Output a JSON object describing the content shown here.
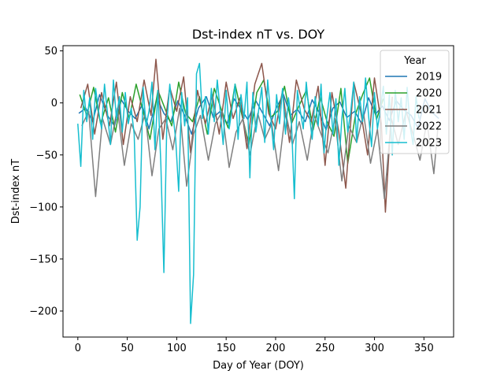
{
  "chart_data": {
    "type": "line",
    "title": "Dst-index nT vs. DOY",
    "xlabel": "Day of Year (DOY)",
    "ylabel": "Dst-index nT",
    "xlim": [
      -15,
      380
    ],
    "ylim": [
      -225,
      55
    ],
    "x_ticks": [
      0,
      50,
      100,
      150,
      200,
      250,
      300,
      350
    ],
    "y_ticks": [
      50,
      0,
      -50,
      -100,
      -150,
      -200
    ],
    "y_tick_labels": [
      "50",
      "0",
      "−50",
      "−100",
      "−150",
      "−200"
    ],
    "grid": false,
    "legend": {
      "title": "Year",
      "placement": "upper-right"
    },
    "series": [
      {
        "name": "2019",
        "color": "#1f77b4",
        "x": [
          1,
          8,
          15,
          22,
          30,
          37,
          44,
          51,
          58,
          65,
          72,
          80,
          87,
          94,
          101,
          108,
          115,
          122,
          130,
          137,
          144,
          151,
          158,
          165,
          172,
          180,
          187,
          194,
          201,
          208,
          215,
          222,
          230,
          237,
          244,
          251,
          258,
          265,
          272,
          280,
          287,
          294,
          301,
          308,
          315,
          322,
          330,
          337,
          344,
          351,
          358,
          365
        ],
        "y": [
          -10,
          -5,
          -18,
          8,
          -12,
          -22,
          3,
          -8,
          -15,
          -2,
          -25,
          5,
          -10,
          -18,
          2,
          -12,
          -30,
          -5,
          6,
          -14,
          -8,
          -20,
          4,
          -6,
          -16,
          2,
          -10,
          -22,
          -4,
          8,
          -12,
          -6,
          -18,
          3,
          -9,
          -26,
          -5,
          1,
          -14,
          -8,
          -20,
          5,
          -11,
          -3,
          -17,
          2,
          -7,
          -12,
          -24,
          4,
          -9,
          -15
        ]
      },
      {
        "name": "2020",
        "color": "#2ca02c",
        "x": [
          2,
          9,
          16,
          23,
          31,
          38,
          45,
          52,
          59,
          66,
          73,
          81,
          88,
          95,
          102,
          109,
          116,
          123,
          131,
          138,
          145,
          152,
          159,
          166,
          173,
          181,
          188,
          195,
          202,
          209,
          216,
          223,
          231,
          238,
          245,
          252,
          259,
          266,
          273,
          281,
          288,
          295,
          302,
          309
        ],
        "y": [
          8,
          -12,
          15,
          -20,
          5,
          -28,
          10,
          -15,
          18,
          -8,
          -35,
          12,
          -5,
          -22,
          20,
          -10,
          -18,
          6,
          -30,
          14,
          -6,
          -24,
          18,
          -12,
          -40,
          10,
          22,
          -14,
          -8,
          16,
          -20,
          -4,
          12,
          -26,
          6,
          -18,
          -32,
          14,
          -58,
          -10,
          8,
          24,
          -16,
          4
        ]
      },
      {
        "name": "2021",
        "color": "#8c564b",
        "x": [
          3,
          10,
          17,
          24,
          32,
          39,
          46,
          53,
          60,
          67,
          74,
          79,
          86,
          93,
          100,
          107,
          114,
          121,
          129,
          136,
          143,
          150,
          157,
          164,
          171,
          179,
          186,
          193,
          200,
          207,
          214,
          221,
          229,
          236,
          243,
          250,
          257,
          264,
          271,
          279,
          286,
          293,
          300,
          307,
          311,
          318
        ],
        "y": [
          -5,
          18,
          -30,
          10,
          -22,
          20,
          -40,
          6,
          -18,
          22,
          -12,
          42,
          -35,
          15,
          -8,
          25,
          -48,
          12,
          -20,
          8,
          -30,
          20,
          -15,
          5,
          -44,
          18,
          38,
          -10,
          -25,
          12,
          -38,
          22,
          -6,
          -18,
          16,
          -60,
          10,
          -28,
          -82,
          20,
          -8,
          -50,
          24,
          -20,
          -105,
          6
        ]
      },
      {
        "name": "2022",
        "color": "#7f7f7f",
        "x": [
          4,
          11,
          18,
          25,
          33,
          40,
          47,
          54,
          61,
          68,
          75,
          82,
          89,
          96,
          103,
          110,
          117,
          124,
          132,
          139,
          146,
          153,
          160,
          167,
          174,
          182,
          189,
          196,
          203,
          210,
          217,
          224,
          232,
          239,
          246,
          253,
          260,
          267,
          274,
          282,
          289,
          296,
          303,
          310,
          317,
          324,
          332,
          339,
          346,
          353,
          360,
          364
        ],
        "y": [
          -22,
          -8,
          -90,
          -15,
          -40,
          -5,
          -60,
          -20,
          -35,
          -10,
          -70,
          -25,
          -15,
          -45,
          -5,
          -80,
          -30,
          -12,
          -55,
          -20,
          -8,
          -62,
          -28,
          -15,
          -50,
          -10,
          -35,
          -20,
          -65,
          -8,
          -40,
          -18,
          -55,
          -12,
          -30,
          -48,
          -15,
          -75,
          -22,
          -38,
          -10,
          -58,
          -25,
          -92,
          -15,
          -40,
          -8,
          -30,
          -55,
          -18,
          -68,
          -25
        ]
      },
      {
        "name": "2023",
        "color": "#17becf",
        "x": [
          0,
          3,
          6,
          9,
          12,
          15,
          18,
          21,
          24,
          27,
          30,
          33,
          36,
          39,
          42,
          45,
          48,
          51,
          54,
          57,
          60,
          63,
          66,
          69,
          72,
          75,
          78,
          81,
          84,
          87,
          90,
          93,
          96,
          99,
          102,
          105,
          108,
          111,
          114,
          117,
          120,
          123,
          126,
          129,
          132,
          135,
          138,
          141,
          144,
          147,
          150,
          153,
          156,
          159,
          162,
          165,
          168,
          171,
          174,
          177,
          180,
          183,
          186,
          189,
          192,
          195,
          198,
          201,
          204,
          207,
          210,
          213,
          216,
          219,
          222,
          225,
          228,
          231,
          234,
          237,
          240,
          243,
          246,
          249,
          252,
          255,
          258,
          261,
          264,
          267,
          270,
          273,
          276,
          279,
          282,
          285,
          288,
          291,
          294,
          297,
          300,
          303,
          306,
          309,
          312,
          315,
          318,
          321,
          324,
          327,
          330,
          333,
          336,
          339,
          342,
          345
        ],
        "y": [
          -20,
          -61,
          12,
          -18,
          5,
          -35,
          14,
          -8,
          -25,
          18,
          -10,
          -40,
          22,
          -15,
          6,
          -28,
          10,
          -20,
          -5,
          -30,
          -132,
          -100,
          15,
          -22,
          -8,
          20,
          -45,
          12,
          -60,
          -163,
          -20,
          18,
          -10,
          -35,
          -85,
          10,
          -22,
          5,
          -212,
          -165,
          28,
          38,
          -15,
          6,
          -30,
          14,
          -18,
          22,
          -8,
          -40,
          12,
          -25,
          -5,
          18,
          -35,
          8,
          -15,
          20,
          -72,
          10,
          -28,
          -6,
          15,
          -38,
          22,
          -12,
          -45,
          8,
          -20,
          14,
          -30,
          5,
          -18,
          -92,
          12,
          -8,
          -25,
          20,
          -10,
          -35,
          6,
          -22,
          18,
          -48,
          -12,
          10,
          -30,
          4,
          -60,
          -15,
          14,
          -28,
          -8,
          20,
          -38,
          6,
          -18,
          24,
          -12,
          -42,
          10,
          -25,
          -6,
          16,
          -30,
          8,
          -50,
          12,
          -18,
          5,
          -35,
          15,
          -22,
          -40,
          6,
          -15
        ]
      }
    ]
  }
}
